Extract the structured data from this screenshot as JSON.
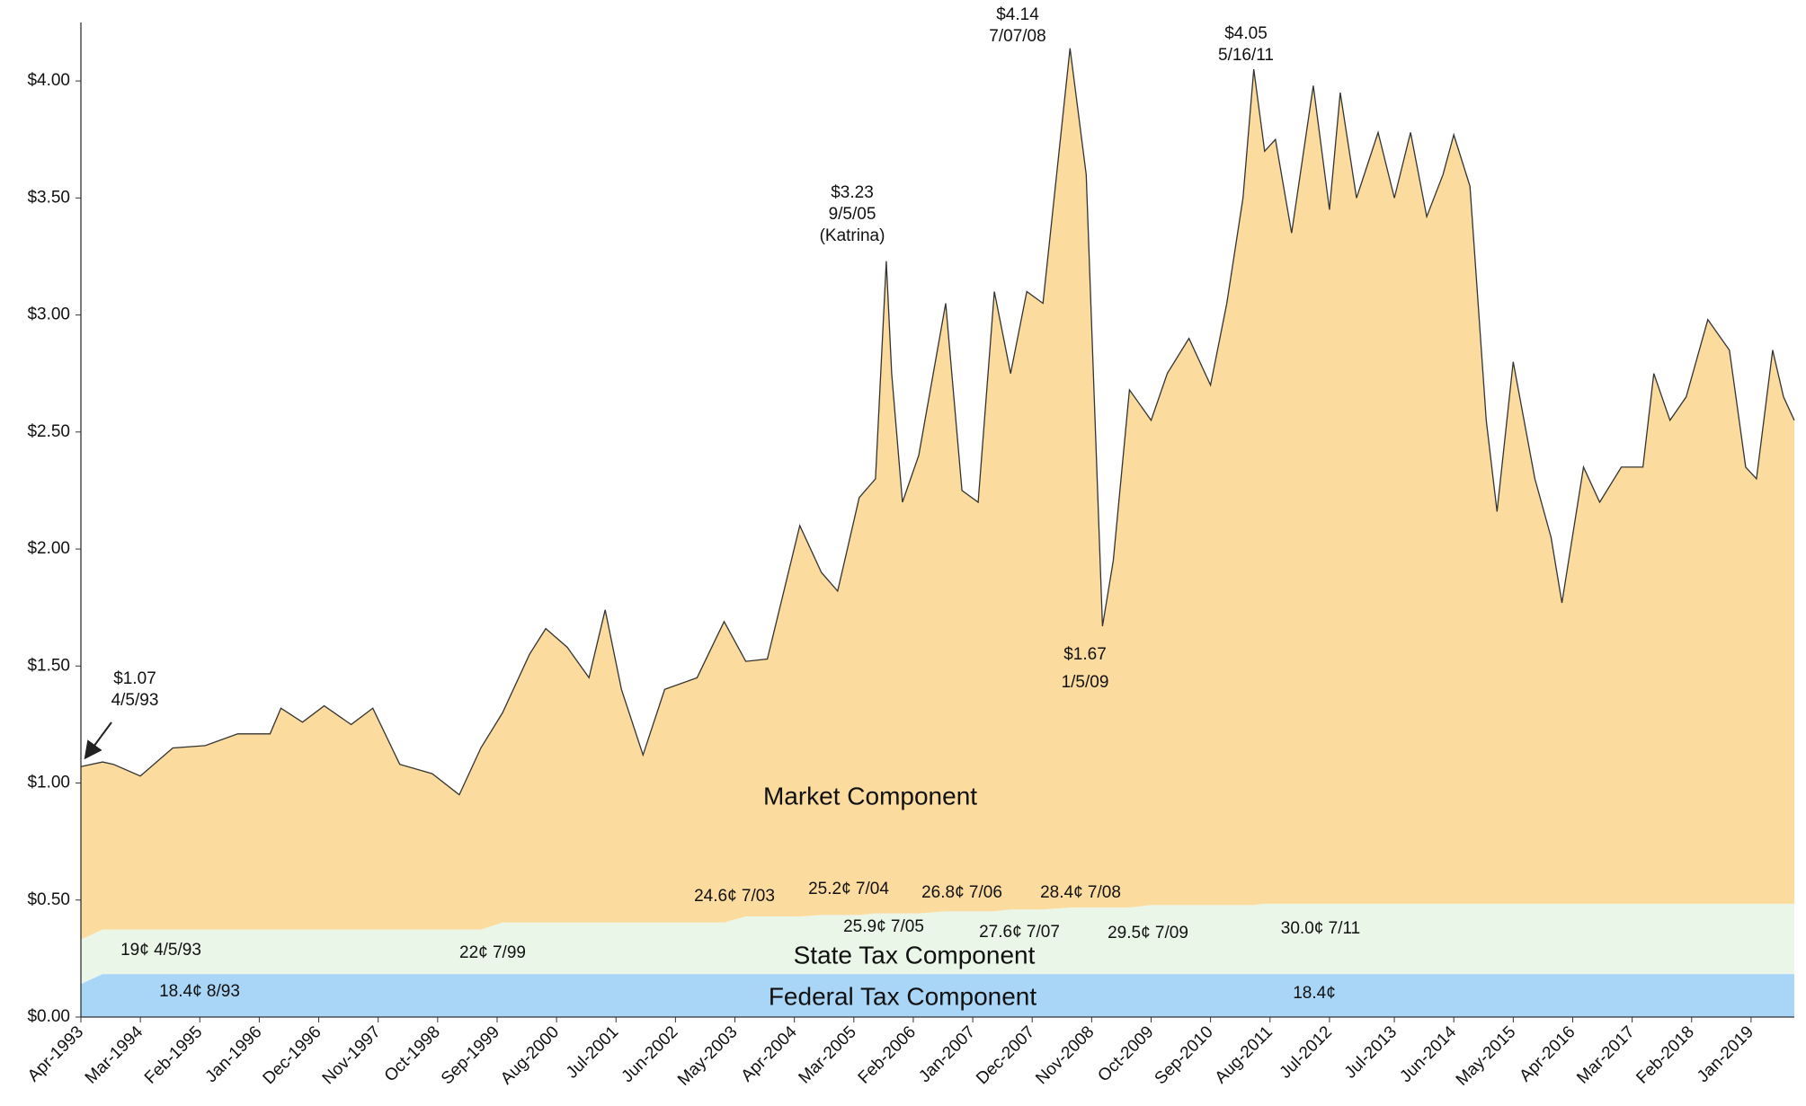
{
  "chart_data": {
    "type": "stacked_area",
    "x": [
      "1993-04",
      "1993-08",
      "1993-10",
      "1994-03",
      "1994-09",
      "1995-03",
      "1995-09",
      "1996-03",
      "1996-05",
      "1996-09",
      "1997-01",
      "1997-06",
      "1997-10",
      "1998-03",
      "1998-09",
      "1999-02",
      "1999-06",
      "1999-10",
      "2000-03",
      "2000-06",
      "2000-10",
      "2001-02",
      "2001-05",
      "2001-08",
      "2001-12",
      "2002-04",
      "2002-10",
      "2003-03",
      "2003-07",
      "2003-11",
      "2004-05",
      "2004-09",
      "2004-12",
      "2005-04",
      "2005-07",
      "2005-09",
      "2005-10",
      "2005-12",
      "2006-03",
      "2006-08",
      "2006-11",
      "2007-02",
      "2007-05",
      "2007-08",
      "2007-11",
      "2008-02",
      "2008-07",
      "2008-10",
      "2009-01",
      "2009-03",
      "2009-06",
      "2009-10",
      "2010-01",
      "2010-05",
      "2010-09",
      "2010-12",
      "2011-03",
      "2011-05",
      "2011-07",
      "2011-09",
      "2011-12",
      "2012-04",
      "2012-07",
      "2012-09",
      "2012-12",
      "2013-04",
      "2013-07",
      "2013-10",
      "2014-01",
      "2014-04",
      "2014-06",
      "2014-09",
      "2014-12",
      "2015-02",
      "2015-05",
      "2015-09",
      "2015-12",
      "2016-02",
      "2016-06",
      "2016-09",
      "2017-01",
      "2017-05",
      "2017-07",
      "2017-10",
      "2018-01",
      "2018-05",
      "2018-09",
      "2018-12",
      "2019-02",
      "2019-05",
      "2019-07",
      "2019-09"
    ],
    "series": [
      {
        "name": "Federal Tax Component",
        "color": "#a9d5f7",
        "values": [
          0.141,
          0.184,
          0.184,
          0.184,
          0.184,
          0.184,
          0.184,
          0.184,
          0.184,
          0.184,
          0.184,
          0.184,
          0.184,
          0.184,
          0.184,
          0.184,
          0.184,
          0.184,
          0.184,
          0.184,
          0.184,
          0.184,
          0.184,
          0.184,
          0.184,
          0.184,
          0.184,
          0.184,
          0.184,
          0.184,
          0.184,
          0.184,
          0.184,
          0.184,
          0.184,
          0.184,
          0.184,
          0.184,
          0.184,
          0.184,
          0.184,
          0.184,
          0.184,
          0.184,
          0.184,
          0.184,
          0.184,
          0.184,
          0.184,
          0.184,
          0.184,
          0.184,
          0.184,
          0.184,
          0.184,
          0.184,
          0.184,
          0.184,
          0.184,
          0.184,
          0.184,
          0.184,
          0.184,
          0.184,
          0.184,
          0.184,
          0.184,
          0.184,
          0.184,
          0.184,
          0.184,
          0.184,
          0.184,
          0.184,
          0.184,
          0.184,
          0.184,
          0.184,
          0.184,
          0.184,
          0.184,
          0.184,
          0.184,
          0.184,
          0.184,
          0.184,
          0.184,
          0.184,
          0.184,
          0.184,
          0.184,
          0.184
        ]
      },
      {
        "name": "State Tax Component",
        "color": "#e9f6e8",
        "values": [
          0.19,
          0.19,
          0.19,
          0.19,
          0.19,
          0.19,
          0.19,
          0.19,
          0.19,
          0.19,
          0.19,
          0.19,
          0.19,
          0.19,
          0.19,
          0.19,
          0.19,
          0.22,
          0.22,
          0.22,
          0.22,
          0.22,
          0.22,
          0.22,
          0.22,
          0.22,
          0.22,
          0.22,
          0.246,
          0.246,
          0.246,
          0.252,
          0.252,
          0.252,
          0.259,
          0.259,
          0.259,
          0.259,
          0.259,
          0.268,
          0.268,
          0.268,
          0.268,
          0.276,
          0.276,
          0.276,
          0.284,
          0.284,
          0.284,
          0.284,
          0.284,
          0.295,
          0.295,
          0.295,
          0.295,
          0.295,
          0.295,
          0.295,
          0.3,
          0.3,
          0.3,
          0.3,
          0.3,
          0.3,
          0.3,
          0.3,
          0.3,
          0.3,
          0.3,
          0.3,
          0.3,
          0.3,
          0.3,
          0.3,
          0.3,
          0.3,
          0.3,
          0.3,
          0.3,
          0.3,
          0.3,
          0.3,
          0.3,
          0.3,
          0.3,
          0.3,
          0.3,
          0.3,
          0.3,
          0.3,
          0.3,
          0.3
        ]
      },
      {
        "name": "Market Component",
        "color": "#fcdc9e",
        "values": [
          0.739,
          0.716,
          0.706,
          0.656,
          0.776,
          0.786,
          0.836,
          0.836,
          0.946,
          0.886,
          0.956,
          0.876,
          0.946,
          0.706,
          0.666,
          0.576,
          0.776,
          0.896,
          1.146,
          1.256,
          1.176,
          1.046,
          1.336,
          0.996,
          0.716,
          0.996,
          1.046,
          1.286,
          1.09,
          1.1,
          1.67,
          1.464,
          1.384,
          1.784,
          1.857,
          2.787,
          2.307,
          1.757,
          1.957,
          2.598,
          1.798,
          1.748,
          2.648,
          2.29,
          2.64,
          2.59,
          3.672,
          3.132,
          1.202,
          1.482,
          2.212,
          2.071,
          2.271,
          2.421,
          2.221,
          2.571,
          3.021,
          3.571,
          3.216,
          3.266,
          2.866,
          3.496,
          2.966,
          3.466,
          3.016,
          3.296,
          3.016,
          3.296,
          2.936,
          3.116,
          3.286,
          3.066,
          2.066,
          1.676,
          2.316,
          1.816,
          1.566,
          1.286,
          1.866,
          1.716,
          1.866,
          1.866,
          2.266,
          2.066,
          2.166,
          2.496,
          2.366,
          1.866,
          1.816,
          2.366,
          2.166,
          2.066
        ]
      }
    ],
    "xlim": [
      "1993-04",
      "2019-09"
    ],
    "xticks": [
      {
        "value": "1993-04",
        "label": "Apr-1993"
      },
      {
        "value": "1994-03",
        "label": "Mar-1994"
      },
      {
        "value": "1995-02",
        "label": "Feb-1995"
      },
      {
        "value": "1996-01",
        "label": "Jan-1996"
      },
      {
        "value": "1996-12",
        "label": "Dec-1996"
      },
      {
        "value": "1997-11",
        "label": "Nov-1997"
      },
      {
        "value": "1998-10",
        "label": "Oct-1998"
      },
      {
        "value": "1999-09",
        "label": "Sep-1999"
      },
      {
        "value": "2000-08",
        "label": "Aug-2000"
      },
      {
        "value": "2001-07",
        "label": "Jul-2001"
      },
      {
        "value": "2002-06",
        "label": "Jun-2002"
      },
      {
        "value": "2003-05",
        "label": "May-2003"
      },
      {
        "value": "2004-04",
        "label": "Apr-2004"
      },
      {
        "value": "2005-03",
        "label": "Mar-2005"
      },
      {
        "value": "2006-02",
        "label": "Feb-2006"
      },
      {
        "value": "2007-01",
        "label": "Jan-2007"
      },
      {
        "value": "2007-12",
        "label": "Dec-2007"
      },
      {
        "value": "2008-11",
        "label": "Nov-2008"
      },
      {
        "value": "2009-10",
        "label": "Oct-2009"
      },
      {
        "value": "2010-09",
        "label": "Sep-2010"
      },
      {
        "value": "2011-08",
        "label": "Aug-2011"
      },
      {
        "value": "2012-07",
        "label": "Jul-2012"
      },
      {
        "value": "2013-07",
        "label": "Jul-2013"
      },
      {
        "value": "2014-06",
        "label": "Jun-2014"
      },
      {
        "value": "2015-05",
        "label": "May-2015"
      },
      {
        "value": "2016-04",
        "label": "Apr-2016"
      },
      {
        "value": "2017-03",
        "label": "Mar-2017"
      },
      {
        "value": "2018-02",
        "label": "Feb-2018"
      },
      {
        "value": "2019-01",
        "label": "Jan-2019"
      }
    ],
    "ylim": [
      0,
      4.25
    ],
    "yticks": [
      {
        "value": 0,
        "label": "$0.00"
      },
      {
        "value": 0.5,
        "label": "$0.50"
      },
      {
        "value": 1,
        "label": "$1.00"
      },
      {
        "value": 1.5,
        "label": "$1.50"
      },
      {
        "value": 2,
        "label": "$2.00"
      },
      {
        "value": 2.5,
        "label": "$2.50"
      },
      {
        "value": 3,
        "label": "$3.00"
      },
      {
        "value": 3.5,
        "label": "$3.50"
      },
      {
        "value": 4,
        "label": "$4.00"
      }
    ],
    "annotations": [
      {
        "lines": [
          "$1.07",
          "4/5/93"
        ]
      },
      {
        "lines": [
          "$3.23",
          "9/5/05",
          "(Katrina)"
        ]
      },
      {
        "lines": [
          "$4.14",
          "7/07/08"
        ]
      },
      {
        "lines": [
          "$4.05",
          "5/16/11"
        ]
      },
      {
        "lines": [
          "$1.67",
          "1/5/09"
        ]
      },
      {
        "lines": [
          "24.6¢ 7/03"
        ]
      },
      {
        "lines": [
          "25.2¢ 7/04"
        ]
      },
      {
        "lines": [
          "26.8¢ 7/06"
        ]
      },
      {
        "lines": [
          "28.4¢ 7/08"
        ]
      },
      {
        "lines": [
          "25.9¢ 7/05"
        ]
      },
      {
        "lines": [
          "27.6¢ 7/07"
        ]
      },
      {
        "lines": [
          "29.5¢ 7/09"
        ]
      },
      {
        "lines": [
          "30.0¢ 7/11"
        ]
      },
      {
        "lines": [
          "19¢ 4/5/93"
        ]
      },
      {
        "lines": [
          "22¢ 7/99"
        ]
      },
      {
        "lines": [
          "18.4¢ 8/93"
        ]
      },
      {
        "lines": [
          "18.4¢"
        ]
      }
    ]
  }
}
